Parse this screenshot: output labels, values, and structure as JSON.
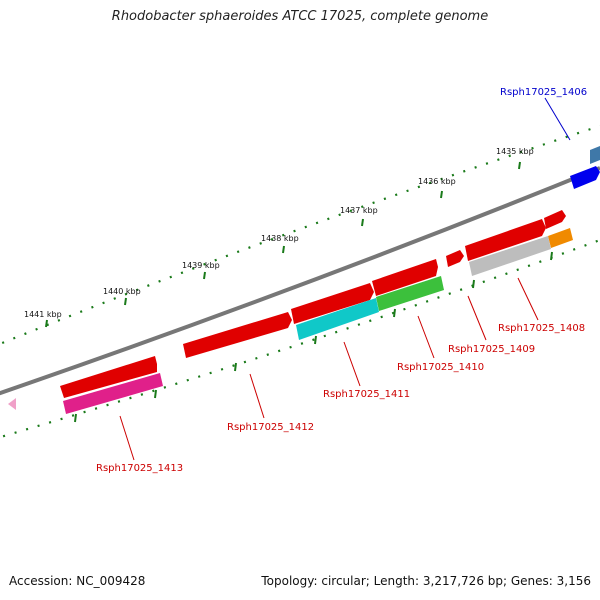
{
  "title": "Rhodobacter sphaeroides ATCC 17025, complete genome",
  "footer": {
    "accession": "Accession: NC_009428",
    "summary": "Topology: circular; Length: 3,217,726 bp; Genes: 3,156"
  },
  "ticks": [
    {
      "label": "1435 kbp"
    },
    {
      "label": "1436 kbp"
    },
    {
      "label": "1437 kbp"
    },
    {
      "label": "1438 kbp"
    },
    {
      "label": "1439 kbp"
    },
    {
      "label": "1440 kbp"
    },
    {
      "label": "1441 kbp"
    }
  ],
  "gene_labels": [
    {
      "name": "Rsph17025_1406",
      "color": "#0000cc"
    },
    {
      "name": "Rsph17025_1408",
      "color": "#cc0000"
    },
    {
      "name": "Rsph17025_1409",
      "color": "#cc0000"
    },
    {
      "name": "Rsph17025_1410",
      "color": "#cc0000"
    },
    {
      "name": "Rsph17025_1411",
      "color": "#cc0000"
    },
    {
      "name": "Rsph17025_1412",
      "color": "#cc0000"
    },
    {
      "name": "Rsph17025_1413",
      "color": "#cc0000"
    }
  ],
  "colors": {
    "cds": "#e00000",
    "rna_blue": "#0000ee",
    "steel": "#3f78a8",
    "orange": "#f08a00",
    "grey": "#bdbdbd",
    "green": "#3cc03c",
    "cyan": "#10c8c8",
    "magenta": "#e0208a",
    "pink": "#f0a0c8",
    "backbone": "#777777",
    "tick": "#1a7a1a"
  }
}
